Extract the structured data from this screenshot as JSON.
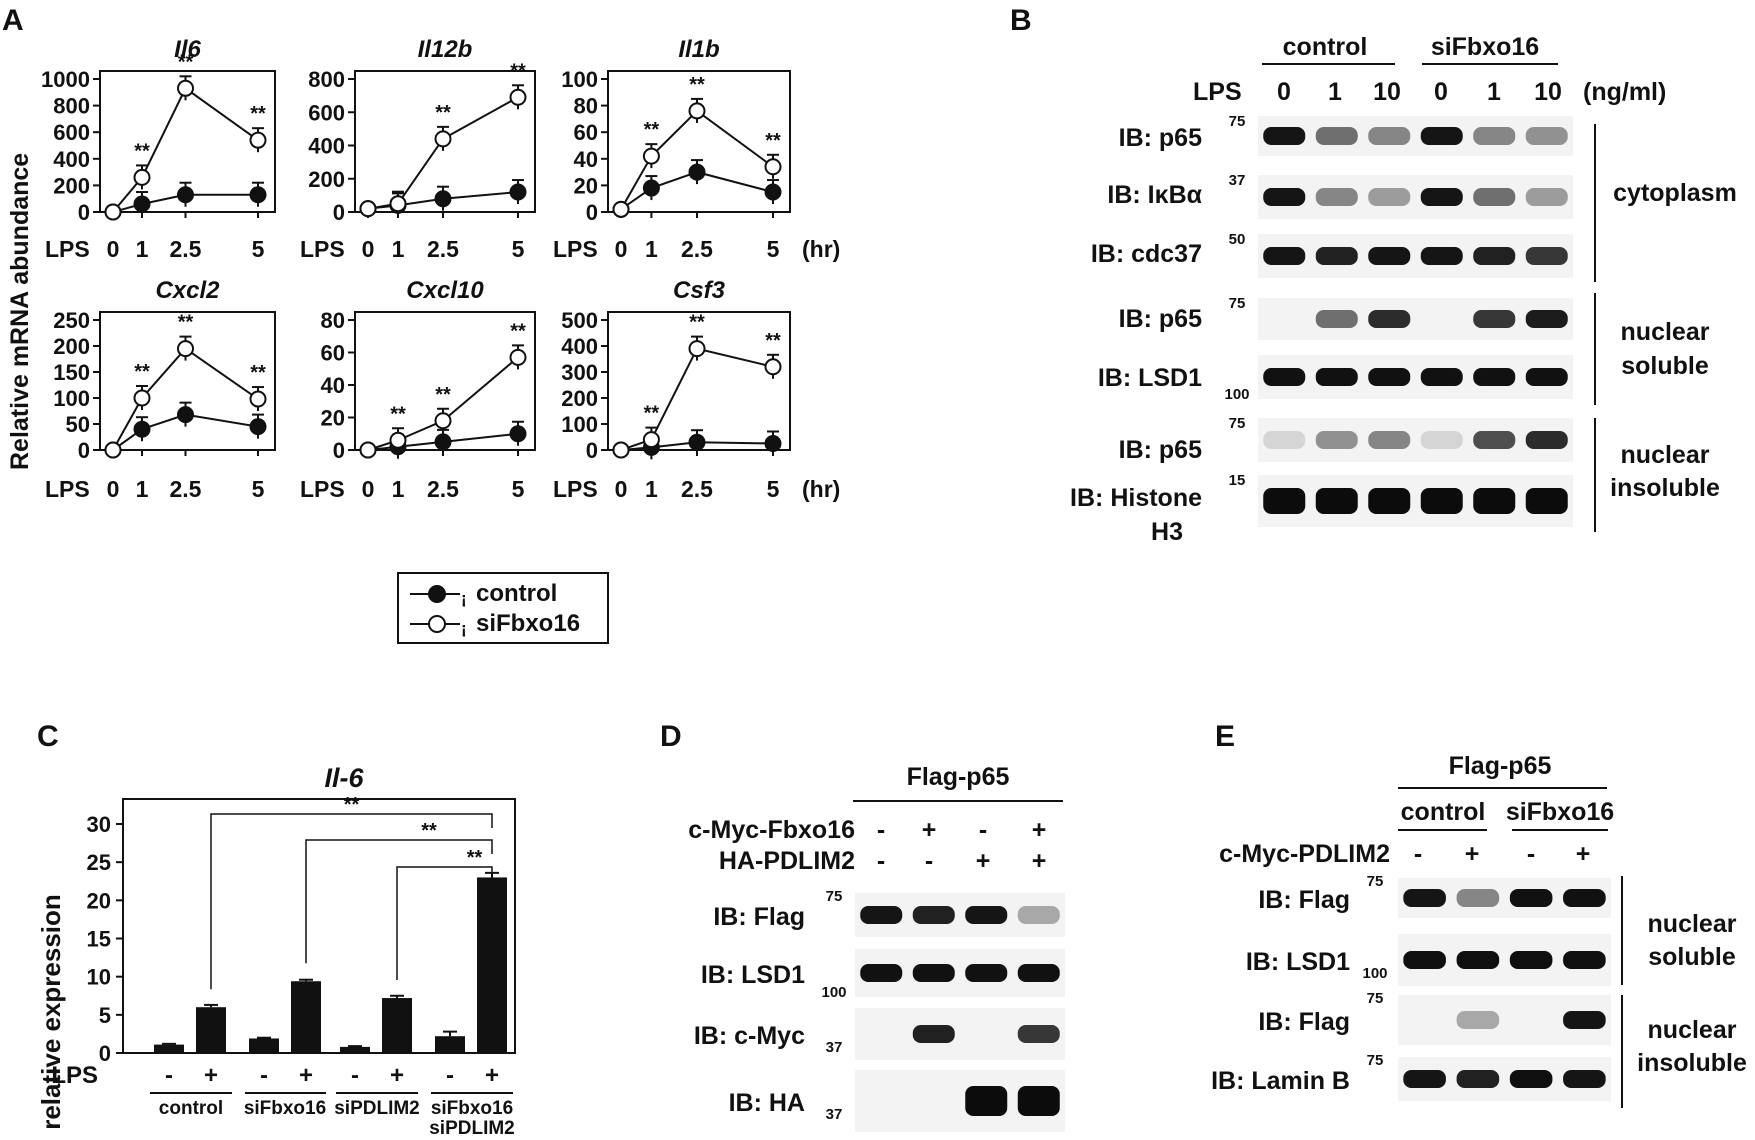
{
  "panels": {
    "A": {
      "label": "A",
      "ylabel": "Relative mRNA abundance",
      "time_unit": "(hr)",
      "lps_label": "LPS",
      "sig": "**",
      "legend": {
        "control": "control",
        "sifbxo16": "siFbxo16",
        "separator": "¡"
      }
    },
    "B": {
      "label": "B",
      "groups": [
        "control",
        "siFbxo16"
      ],
      "lps_label": "LPS",
      "doses": [
        "0",
        "1",
        "10",
        "0",
        "1",
        "10"
      ],
      "dose_unit": "(ng/ml)",
      "blots": [
        {
          "label": "IB: p65",
          "marker": "75"
        },
        {
          "label": "IB: IκBα",
          "marker": "37"
        },
        {
          "label": "IB: cdc37",
          "marker": "50"
        },
        {
          "label": "IB: p65",
          "marker": "75"
        },
        {
          "label": "IB: LSD1",
          "marker": "100"
        },
        {
          "label": "IB: p65",
          "marker": "75"
        },
        {
          "label": "IB: Histone",
          "marker": "15"
        }
      ],
      "histone_line2": "H3",
      "fractions": [
        "cytoplasm",
        "nuclear",
        "soluble",
        "nuclear",
        "insoluble"
      ]
    },
    "C": {
      "label": "C",
      "lps_label": "LPS",
      "minus": "-",
      "plus": "+",
      "groups": [
        "control",
        "siFbxo16",
        "siPDLIM2",
        "siFbxo16",
        "siPDLIM2"
      ],
      "sig": "**"
    },
    "D": {
      "label": "D",
      "header": "Flag-p65",
      "rows": [
        {
          "label": "c-Myc-Fbxo16",
          "signs": [
            "-",
            "+",
            "-",
            "+"
          ]
        },
        {
          "label": "HA-PDLIM2",
          "signs": [
            "-",
            "-",
            "+",
            "+"
          ]
        }
      ],
      "blots": [
        {
          "label": "IB: Flag",
          "marker": "75"
        },
        {
          "label": "IB: LSD1",
          "marker": "100"
        },
        {
          "label": "IB: c-Myc",
          "marker": "37"
        },
        {
          "label": "IB: HA",
          "marker": "37"
        }
      ]
    },
    "E": {
      "label": "E",
      "header": "Flag-p65",
      "groups": [
        "control",
        "siFbxo16"
      ],
      "row_label": "c-Myc-PDLIM2",
      "signs": [
        "-",
        "+",
        "-",
        "+"
      ],
      "blots": [
        {
          "label": "IB: Flag",
          "marker": "75"
        },
        {
          "label": "IB: LSD1",
          "marker": "100"
        },
        {
          "label": "IB: Flag",
          "marker": "75"
        },
        {
          "label": "IB: Lamin B",
          "marker": "75"
        }
      ],
      "fractions": [
        "nuclear",
        "soluble",
        "nuclear",
        "insoluble"
      ]
    }
  },
  "chart_data": [
    {
      "type": "line",
      "title": "Il6",
      "x": [
        "0",
        "1",
        "2.5",
        "5"
      ],
      "ylim": [
        0,
        1000
      ],
      "yticks": [
        0,
        200,
        400,
        600,
        800,
        1000
      ],
      "series": [
        {
          "name": "control",
          "values": [
            0,
            60,
            130,
            130
          ]
        },
        {
          "name": "siFbxo16",
          "values": [
            0,
            260,
            930,
            540
          ]
        }
      ],
      "significance": [
        "",
        "**",
        "**",
        "**"
      ]
    },
    {
      "type": "line",
      "title": "Il12b",
      "x": [
        "0",
        "1",
        "2.5",
        "5"
      ],
      "ylim": [
        0,
        800
      ],
      "yticks": [
        0,
        200,
        400,
        600,
        800
      ],
      "series": [
        {
          "name": "control",
          "values": [
            20,
            40,
            80,
            120
          ]
        },
        {
          "name": "siFbxo16",
          "values": [
            20,
            50,
            440,
            690
          ]
        }
      ],
      "significance": [
        "",
        "",
        "**",
        "**"
      ]
    },
    {
      "type": "line",
      "title": "Il1b",
      "x": [
        "0",
        "1",
        "2.5",
        "5"
      ],
      "ylim": [
        0,
        100
      ],
      "yticks": [
        0,
        20,
        40,
        60,
        80,
        100
      ],
      "series": [
        {
          "name": "control",
          "values": [
            2,
            18,
            30,
            15
          ]
        },
        {
          "name": "siFbxo16",
          "values": [
            2,
            42,
            76,
            34
          ]
        }
      ],
      "significance": [
        "",
        "**",
        "**",
        "**"
      ]
    },
    {
      "type": "line",
      "title": "Cxcl2",
      "x": [
        "0",
        "1",
        "2.5",
        "5"
      ],
      "ylim": [
        0,
        250
      ],
      "yticks": [
        0,
        50,
        100,
        150,
        200,
        250
      ],
      "series": [
        {
          "name": "control",
          "values": [
            0,
            40,
            68,
            45
          ]
        },
        {
          "name": "siFbxo16",
          "values": [
            0,
            100,
            195,
            98
          ]
        }
      ],
      "significance": [
        "",
        "**",
        "**",
        "**"
      ]
    },
    {
      "type": "line",
      "title": "Cxcl10",
      "x": [
        "0",
        "1",
        "2.5",
        "5"
      ],
      "ylim": [
        0,
        80
      ],
      "yticks": [
        0,
        20,
        40,
        60,
        80
      ],
      "series": [
        {
          "name": "control",
          "values": [
            0,
            2,
            5,
            10
          ]
        },
        {
          "name": "siFbxo16",
          "values": [
            0,
            6,
            18,
            57
          ]
        }
      ],
      "significance": [
        "",
        "**",
        "**",
        "**"
      ]
    },
    {
      "type": "line",
      "title": "Csf3",
      "x": [
        "0",
        "1",
        "2.5",
        "5"
      ],
      "ylim": [
        0,
        500
      ],
      "yticks": [
        0,
        100,
        200,
        300,
        400,
        500
      ],
      "series": [
        {
          "name": "control",
          "values": [
            0,
            10,
            30,
            25
          ]
        },
        {
          "name": "siFbxo16",
          "values": [
            0,
            40,
            390,
            320
          ]
        }
      ],
      "significance": [
        "",
        "**",
        "**",
        "**"
      ]
    },
    {
      "type": "bar",
      "title": "Il-6",
      "ylabel": "relative expression",
      "ylim": [
        0,
        30
      ],
      "yticks": [
        0,
        5,
        10,
        15,
        20,
        25,
        30
      ],
      "values": [
        1.1,
        6.0,
        1.9,
        9.4,
        0.8,
        7.2,
        2.2,
        23.0
      ],
      "errors": [
        0.1,
        0.3,
        0.1,
        0.2,
        0.1,
        0.3,
        0.6,
        0.6
      ],
      "lps": [
        "-",
        "+",
        "-",
        "+",
        "-",
        "+",
        "-",
        "+"
      ],
      "comparisons": [
        [
          1,
          7
        ],
        [
          3,
          7
        ],
        [
          5,
          7
        ]
      ]
    }
  ]
}
